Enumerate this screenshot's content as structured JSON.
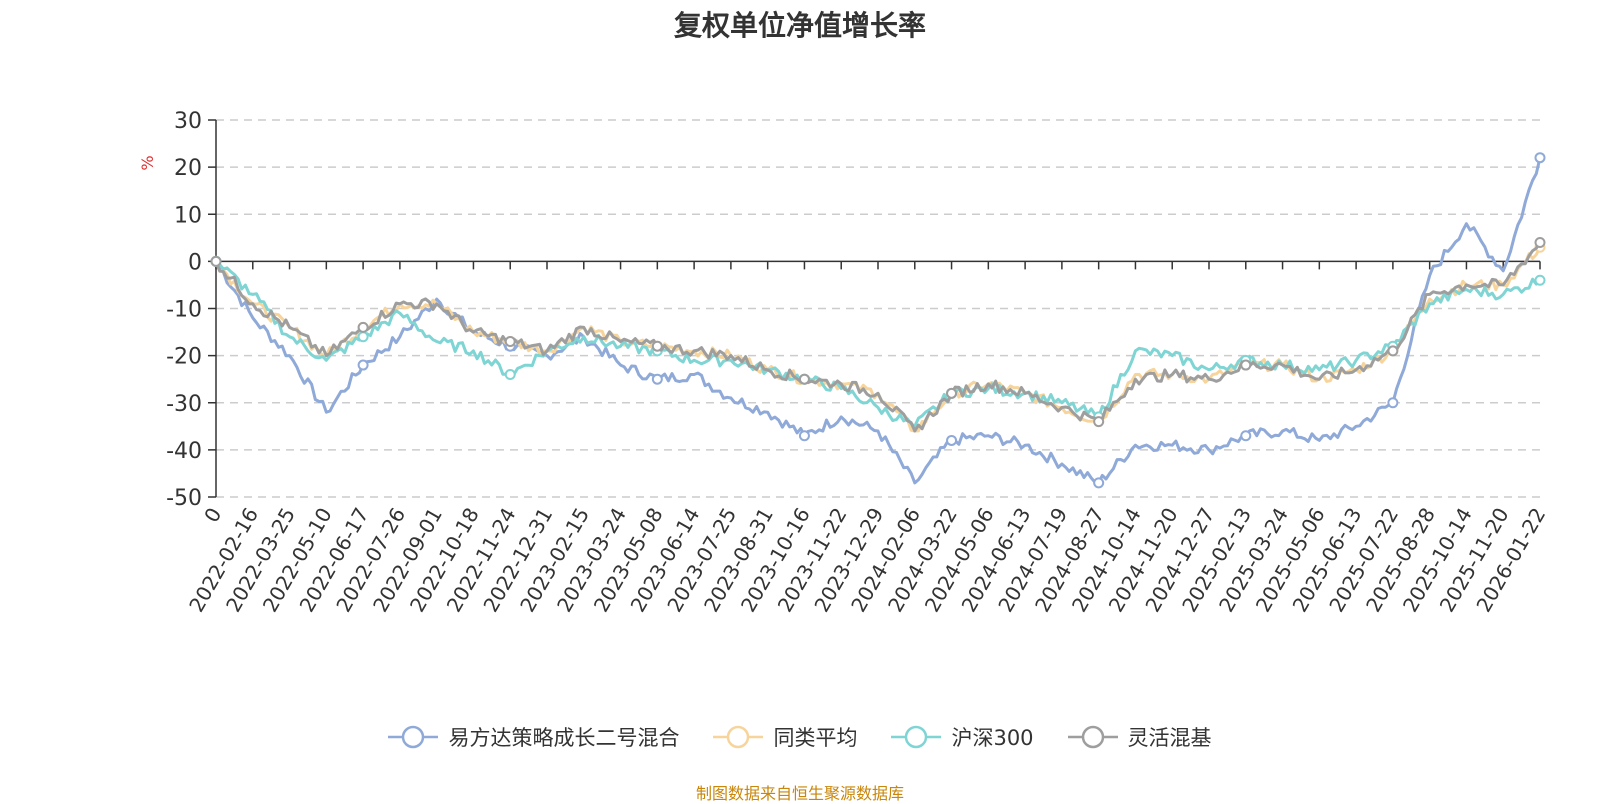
{
  "title": "复权单位净值增长率",
  "unit": "%",
  "footer": "制图数据来自恒生聚源数据库",
  "chart_data": {
    "type": "line",
    "title": "复权单位净值增长率",
    "ylabel": "%",
    "ylim": [
      -50,
      30
    ],
    "yticks": [
      30,
      20,
      10,
      0,
      -10,
      -20,
      -30,
      -40,
      -50
    ],
    "grid": true,
    "legend": "bottom",
    "x_labels": [
      "0",
      "2022-02-16",
      "2022-03-25",
      "2022-05-10",
      "2022-06-17",
      "2022-07-26",
      "2022-09-01",
      "2022-10-18",
      "2022-11-24",
      "2022-12-31",
      "2023-02-15",
      "2023-03-24",
      "2023-05-08",
      "2023-06-14",
      "2023-07-25",
      "2023-08-31",
      "2023-10-16",
      "2023-11-22",
      "2023-12-29",
      "2024-02-06",
      "2024-03-22",
      "2024-05-06",
      "2024-06-13",
      "2024-07-19",
      "2024-08-27",
      "2024-10-14",
      "2024-11-20",
      "2024-12-27",
      "2025-02-13",
      "2025-03-24",
      "2025-05-06",
      "2025-06-13",
      "2025-07-22",
      "2025-08-28",
      "2025-10-14",
      "2025-11-20",
      "2026-01-22"
    ],
    "series": [
      {
        "name": "易方达策略成长二号混合",
        "color": "#8fa9d8",
        "values": [
          0,
          -12,
          -20,
          -32,
          -22,
          -16,
          -8,
          -15,
          -18,
          -20,
          -16,
          -22,
          -25,
          -24,
          -29,
          -32,
          -37,
          -33,
          -36,
          -47,
          -38,
          -37,
          -39,
          -43,
          -47,
          -39,
          -39,
          -40,
          -37,
          -36,
          -38,
          -35,
          -30,
          -3,
          8,
          -2,
          22
        ]
      },
      {
        "name": "同类平均",
        "color": "#f7d49b",
        "values": [
          0,
          -9,
          -14,
          -20,
          -14,
          -9,
          -9,
          -15,
          -17,
          -19,
          -14,
          -17,
          -18,
          -19,
          -20,
          -23,
          -25,
          -26,
          -28,
          -36,
          -28,
          -26,
          -28,
          -31,
          -34,
          -24,
          -24,
          -25,
          -22,
          -22,
          -25,
          -23,
          -19,
          -8,
          -5,
          -5,
          3
        ]
      },
      {
        "name": "沪深300",
        "color": "#7fd4d4",
        "values": [
          0,
          -7,
          -16,
          -21,
          -16,
          -11,
          -17,
          -19,
          -24,
          -19,
          -16,
          -18,
          -19,
          -21,
          -21,
          -23,
          -25,
          -27,
          -31,
          -35,
          -28,
          -27,
          -28,
          -30,
          -33,
          -19,
          -20,
          -23,
          -21,
          -22,
          -23,
          -21,
          -18,
          -9,
          -6,
          -7,
          -4
        ]
      },
      {
        "name": "灵活混基",
        "color": "#9e9e9e",
        "values": [
          0,
          -9,
          -14,
          -20,
          -14,
          -9,
          -9,
          -15,
          -17,
          -19,
          -14,
          -17,
          -18,
          -19,
          -20,
          -23,
          -25,
          -26,
          -28,
          -36,
          -28,
          -26,
          -28,
          -31,
          -34,
          -25,
          -24,
          -25,
          -22,
          -22,
          -25,
          -23,
          -19,
          -7,
          -5,
          -5,
          4
        ]
      }
    ]
  }
}
